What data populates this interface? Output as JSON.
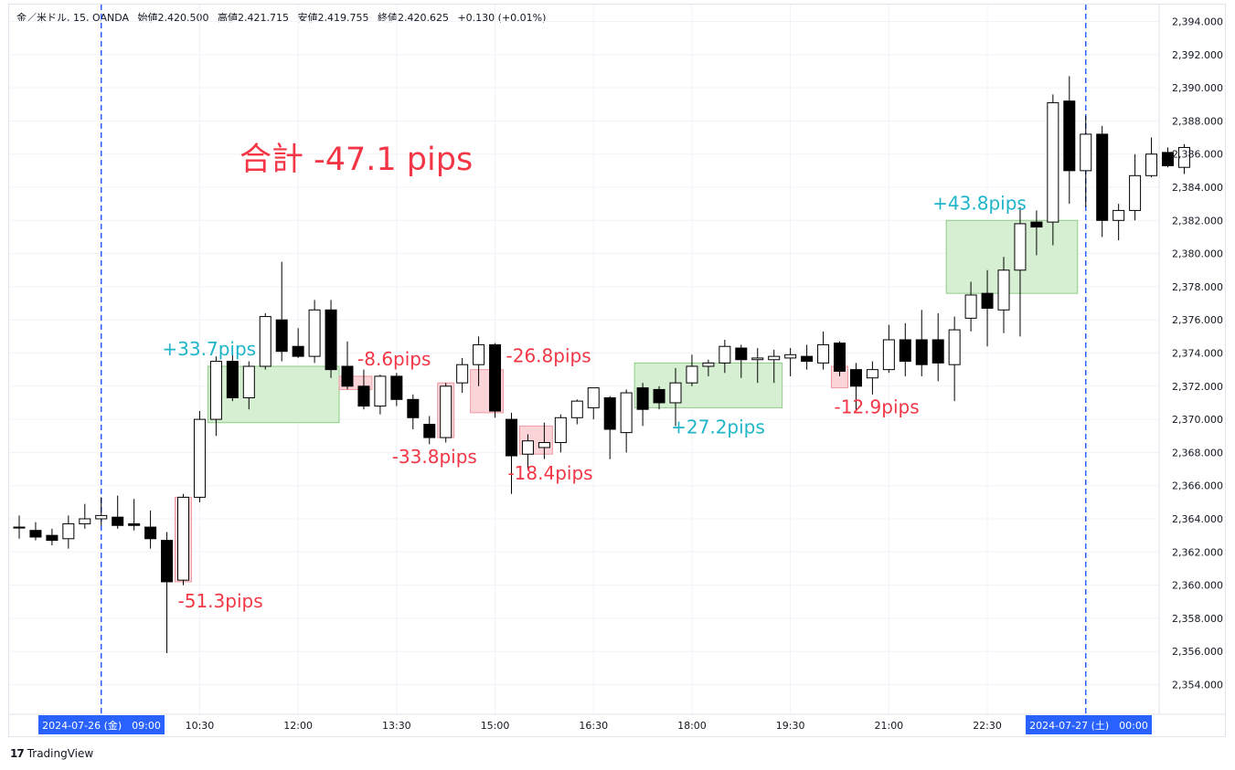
{
  "header": {
    "symbol": "金／米ドル, 15, OANDA",
    "open": "始値2,420.500",
    "high": "高値2,421.715",
    "low": "安値2,419.755",
    "close": "終値2,420.625",
    "change": "+0.130 (+0.01%)"
  },
  "footer": {
    "brand": "TradingView"
  },
  "colors": {
    "up_candle": "#ffffff",
    "down_candle": "#000000",
    "profit_box": "#d6efd2",
    "loss_box": "#fbd4d8",
    "profit_text": "#1fb5c9",
    "loss_text": "#f23645",
    "session_line": "#2962ff",
    "axis_text": "#131722"
  },
  "chart_data": {
    "type": "candlestick",
    "title": "合計 -47.1 pips",
    "ylim": [
      2353.0,
      2395.0
    ],
    "y_ticks": [
      "2,354.000",
      "2,356.000",
      "2,358.000",
      "2,360.000",
      "2,362.000",
      "2,364.000",
      "2,366.000",
      "2,368.000",
      "2,370.000",
      "2,372.000",
      "2,374.000",
      "2,376.000",
      "2,378.000",
      "2,380.000",
      "2,382.000",
      "2,384.000",
      "2,386.000",
      "2,388.000",
      "2,390.000",
      "2,392.000",
      "2,394.000"
    ],
    "x_ticks": [
      {
        "label": "2024-07-26 (金)　09:00",
        "bar": 5,
        "highlight": true
      },
      {
        "label": "10:30",
        "bar": 11,
        "highlight": false
      },
      {
        "label": "12:00",
        "bar": 17,
        "highlight": false
      },
      {
        "label": "13:30",
        "bar": 23,
        "highlight": false
      },
      {
        "label": "15:00",
        "bar": 29,
        "highlight": false
      },
      {
        "label": "16:30",
        "bar": 35,
        "highlight": false
      },
      {
        "label": "18:00",
        "bar": 41,
        "highlight": false
      },
      {
        "label": "19:30",
        "bar": 47,
        "highlight": false
      },
      {
        "label": "21:00",
        "bar": 53,
        "highlight": false
      },
      {
        "label": "22:30",
        "bar": 59,
        "highlight": false
      },
      {
        "label": "2024-07-27 (土)　00:00",
        "bar": 65,
        "highlight": true
      }
    ],
    "session_breaks": [
      5,
      65
    ],
    "candles": [
      [
        2363.5,
        2364.2,
        2362.8,
        2363.5
      ],
      [
        2363.3,
        2363.8,
        2362.7,
        2362.9
      ],
      [
        2363.0,
        2363.4,
        2362.4,
        2362.7
      ],
      [
        2362.8,
        2364.2,
        2362.2,
        2363.7
      ],
      [
        2363.7,
        2364.9,
        2363.4,
        2364.0
      ],
      [
        2364.0,
        2365.3,
        2363.6,
        2364.2
      ],
      [
        2364.1,
        2365.4,
        2363.4,
        2363.6
      ],
      [
        2363.7,
        2365.2,
        2363.3,
        2363.6
      ],
      [
        2363.5,
        2364.5,
        2362.2,
        2362.8
      ],
      [
        2362.7,
        2363.2,
        2355.9,
        2360.2
      ],
      [
        2360.3,
        2365.5,
        2360.0,
        2365.3
      ],
      [
        2365.3,
        2370.5,
        2365.0,
        2370.0
      ],
      [
        2370.0,
        2373.8,
        2369.0,
        2373.5
      ],
      [
        2373.5,
        2373.9,
        2371.1,
        2371.3
      ],
      [
        2371.3,
        2373.5,
        2370.6,
        2373.2
      ],
      [
        2373.2,
        2376.4,
        2373.0,
        2376.2
      ],
      [
        2376.0,
        2379.5,
        2373.5,
        2374.1
      ],
      [
        2374.4,
        2375.5,
        2373.7,
        2373.8
      ],
      [
        2373.8,
        2377.2,
        2373.4,
        2376.6
      ],
      [
        2376.6,
        2377.2,
        2372.5,
        2373.0
      ],
      [
        2373.2,
        2374.7,
        2371.8,
        2372.0
      ],
      [
        2372.0,
        2373.0,
        2370.6,
        2370.8
      ],
      [
        2370.8,
        2372.7,
        2370.3,
        2372.6
      ],
      [
        2372.6,
        2372.8,
        2370.8,
        2371.2
      ],
      [
        2371.2,
        2371.5,
        2369.4,
        2370.1
      ],
      [
        2369.7,
        2370.2,
        2368.5,
        2368.9
      ],
      [
        2368.9,
        2372.2,
        2368.6,
        2372.0
      ],
      [
        2372.2,
        2373.7,
        2371.6,
        2373.3
      ],
      [
        2373.3,
        2375.0,
        2372.0,
        2374.5
      ],
      [
        2374.5,
        2374.6,
        2370.1,
        2370.5
      ],
      [
        2370.0,
        2370.4,
        2365.5,
        2367.8
      ],
      [
        2367.9,
        2369.1,
        2367.0,
        2368.7
      ],
      [
        2368.3,
        2369.8,
        2367.6,
        2368.6
      ],
      [
        2368.6,
        2370.3,
        2368.0,
        2370.1
      ],
      [
        2370.1,
        2371.2,
        2369.7,
        2371.1
      ],
      [
        2370.7,
        2371.9,
        2370.0,
        2371.9
      ],
      [
        2371.3,
        2371.4,
        2367.6,
        2369.4
      ],
      [
        2369.2,
        2371.8,
        2368.0,
        2371.6
      ],
      [
        2371.9,
        2372.2,
        2369.6,
        2370.6
      ],
      [
        2371.8,
        2372.0,
        2370.6,
        2371.0
      ],
      [
        2371.0,
        2373.1,
        2369.6,
        2372.2
      ],
      [
        2372.2,
        2373.9,
        2372.0,
        2373.2
      ],
      [
        2373.2,
        2373.6,
        2372.6,
        2373.4
      ],
      [
        2373.4,
        2374.8,
        2372.8,
        2374.4
      ],
      [
        2374.3,
        2374.5,
        2372.5,
        2373.6
      ],
      [
        2373.6,
        2374.3,
        2372.2,
        2373.7
      ],
      [
        2373.6,
        2374.2,
        2372.2,
        2373.8
      ],
      [
        2373.7,
        2374.3,
        2372.6,
        2373.9
      ],
      [
        2373.8,
        2374.5,
        2373.0,
        2373.5
      ],
      [
        2373.4,
        2375.3,
        2373.0,
        2374.5
      ],
      [
        2374.6,
        2374.7,
        2372.6,
        2372.9
      ],
      [
        2373.0,
        2373.4,
        2370.5,
        2372.0
      ],
      [
        2372.5,
        2373.5,
        2371.5,
        2373.0
      ],
      [
        2373.0,
        2375.7,
        2372.8,
        2374.8
      ],
      [
        2374.8,
        2375.8,
        2372.6,
        2373.5
      ],
      [
        2374.8,
        2376.6,
        2372.6,
        2373.3
      ],
      [
        2374.8,
        2376.4,
        2372.3,
        2373.4
      ],
      [
        2373.3,
        2376.2,
        2371.1,
        2375.4
      ],
      [
        2376.1,
        2378.3,
        2375.3,
        2377.5
      ],
      [
        2377.6,
        2379.0,
        2374.4,
        2376.7
      ],
      [
        2376.6,
        2379.8,
        2375.2,
        2379.0
      ],
      [
        2379.0,
        2382.8,
        2375.0,
        2381.8
      ],
      [
        2381.9,
        2382.6,
        2379.9,
        2381.6
      ],
      [
        2381.9,
        2389.6,
        2380.5,
        2389.1
      ],
      [
        2389.2,
        2390.7,
        2383.0,
        2385.0
      ],
      [
        2385.0,
        2388.3,
        2382.8,
        2387.2
      ],
      [
        2387.2,
        2387.7,
        2381.0,
        2382.0
      ],
      [
        2382.0,
        2383.0,
        2380.8,
        2382.6
      ],
      [
        2382.6,
        2386.0,
        2382.0,
        2384.7
      ],
      [
        2384.7,
        2387.0,
        2384.6,
        2386.0
      ],
      [
        2386.1,
        2386.4,
        2385.2,
        2385.3
      ],
      [
        2385.2,
        2386.6,
        2384.8,
        2386.4
      ]
    ],
    "trades": [
      {
        "label": "-51.3pips",
        "result": "loss",
        "bar_start": 9.5,
        "bar_end": 10.5,
        "y_top": 2365.3,
        "y_bottom": 2360.2,
        "label_pos": "below"
      },
      {
        "label": "+33.7pips",
        "result": "profit",
        "bar_start": 11.5,
        "bar_end": 19.5,
        "y_top": 2373.2,
        "y_bottom": 2369.8,
        "label_pos": "above"
      },
      {
        "label": "-8.6pips",
        "result": "loss",
        "bar_start": 19.5,
        "bar_end": 21.5,
        "y_top": 2372.6,
        "y_bottom": 2371.8,
        "label_pos": "above"
      },
      {
        "label": "-33.8pips",
        "result": "loss",
        "bar_start": 25.5,
        "bar_end": 26.5,
        "y_top": 2372.2,
        "y_bottom": 2368.9,
        "label_pos": "below"
      },
      {
        "label": "-26.8pips",
        "result": "loss",
        "bar_start": 27.5,
        "bar_end": 29.5,
        "y_top": 2373.0,
        "y_bottom": 2370.4,
        "label_pos": "right"
      },
      {
        "label": "-18.4pips",
        "result": "loss",
        "bar_start": 30.5,
        "bar_end": 32.5,
        "y_top": 2369.6,
        "y_bottom": 2367.9,
        "label_pos": "below"
      },
      {
        "label": "+27.2pips",
        "result": "profit",
        "bar_start": 37.5,
        "bar_end": 46.5,
        "y_top": 2373.4,
        "y_bottom": 2370.7,
        "label_pos": "below"
      },
      {
        "label": "-12.9pips",
        "result": "loss",
        "bar_start": 49.5,
        "bar_end": 50.5,
        "y_top": 2373.2,
        "y_bottom": 2371.9,
        "label_pos": "below"
      },
      {
        "label": "+43.8pips",
        "result": "profit",
        "bar_start": 56.5,
        "bar_end": 64.5,
        "y_top": 2382.0,
        "y_bottom": 2377.6,
        "label_pos": "above"
      }
    ]
  }
}
